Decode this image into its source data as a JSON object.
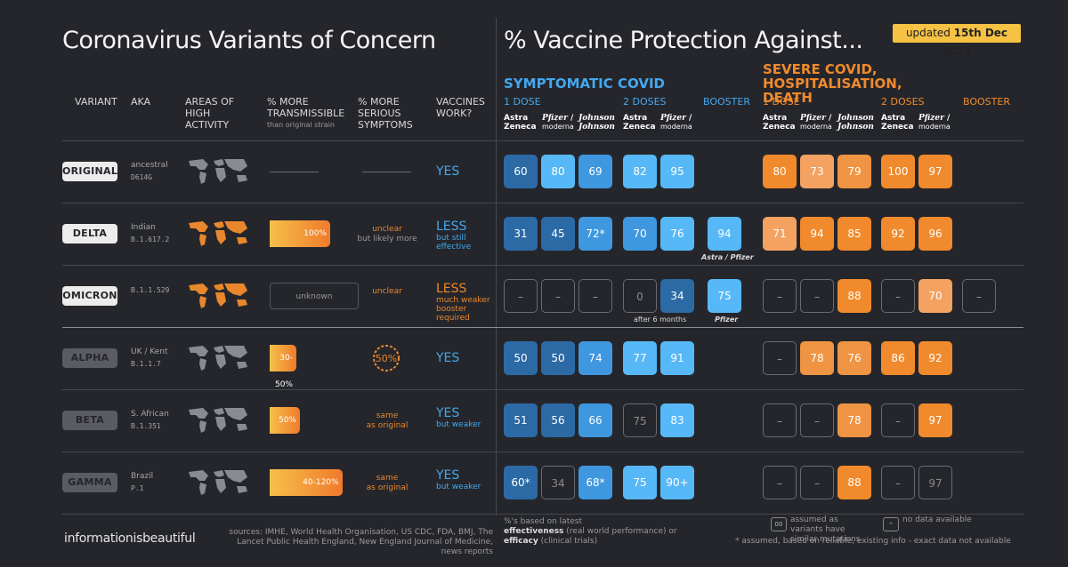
{
  "title": "Coronavirus Variants of Concern",
  "title2": "% Vaccine Protection Against...",
  "updated": {
    "label": "updated",
    "date": "15th Dec 2021"
  },
  "columns": {
    "variant": "VARIANT",
    "aka": "AKA",
    "areas": "AREAS OF HIGH ACTIVITY",
    "transmissible": "% MORE TRANSMISSIBLE",
    "transmissible_sub": "than original strain",
    "serious": "% MORE SERIOUS SYMPTOMS",
    "vaccines": "VACCINES WORK?"
  },
  "sections": {
    "symptomatic": "SYMPTOMATIC COVID",
    "severe": "SEVERE COVID, HOSPITALISATION, DEATH"
  },
  "doses": {
    "one": "1 DOSE",
    "two": "2 DOSES",
    "booster": "BOOSTER"
  },
  "brands": {
    "astra1": "Astra",
    "astra2": "Zeneca",
    "pfizer": "Pfizer",
    "moderna": "moderna",
    "jj1": "Johnson",
    "jj2": "Johnson"
  },
  "colors": {
    "blue_bright": "#57b8f7",
    "blue_mid": "#3f97df",
    "blue_dark": "#2c6aa6",
    "orange_bright": "#f08a2c",
    "orange_light": "#f4a261"
  },
  "chart_data": {
    "type": "table",
    "variants": [
      {
        "name": "ORIGINAL",
        "aka": "ancestral",
        "code": "D614G",
        "transmissible": null,
        "transmissible_label": "",
        "serious": "",
        "serious_sub": "",
        "vaccines": "YES",
        "vaccines_sub": "",
        "note": "",
        "symptomatic": {
          "one": [
            "60",
            "80",
            "69"
          ],
          "two": [
            "82",
            "95"
          ],
          "booster": []
        },
        "severe": {
          "one": [
            "80",
            "73",
            "79"
          ],
          "two": [
            "100",
            "97"
          ],
          "booster": []
        }
      },
      {
        "name": "DELTA",
        "aka": "Indian",
        "code": "B.1.617.2",
        "transmissible": 100,
        "transmissible_label": "100%",
        "serious": "unclear",
        "serious_sub": "but likely more",
        "vaccines": "LESS",
        "vaccines_sub": "but still effective",
        "note": "",
        "symptomatic": {
          "one": [
            "31",
            "45",
            "72*"
          ],
          "two": [
            "70",
            "76"
          ],
          "booster": [
            "94"
          ],
          "booster_note": "Astra / Pfizer"
        },
        "severe": {
          "one": [
            "71",
            "94",
            "85"
          ],
          "two": [
            "92",
            "96"
          ],
          "booster": []
        }
      },
      {
        "name": "OMICRON",
        "aka": "",
        "code": "B.1.1.529",
        "transmissible": null,
        "transmissible_label": "unknown",
        "serious": "unclear",
        "serious_sub": "",
        "vaccines": "LESS",
        "vaccines_sub": "much weaker booster required",
        "note": "after 6 months",
        "symptomatic": {
          "one": [
            "–",
            "–",
            "–"
          ],
          "two": [
            "0",
            "34"
          ],
          "booster": [
            "75"
          ],
          "booster_note": "Pfizer"
        },
        "severe": {
          "one": [
            "–",
            "–",
            "88"
          ],
          "two": [
            "–",
            "70"
          ],
          "booster": [
            "–"
          ]
        }
      },
      {
        "name": "ALPHA",
        "aka": "UK / Kent",
        "code": "B.1.1.7",
        "transmissible": 40,
        "transmissible_label": "30-50%",
        "serious": "50%",
        "serious_sub": "",
        "vaccines": "YES",
        "vaccines_sub": "",
        "note": "",
        "symptomatic": {
          "one": [
            "50",
            "50",
            "74"
          ],
          "two": [
            "77",
            "91"
          ],
          "booster": []
        },
        "severe": {
          "one": [
            "–",
            "78",
            "76"
          ],
          "two": [
            "86",
            "92"
          ],
          "booster": []
        }
      },
      {
        "name": "BETA",
        "aka": "S. African",
        "code": "B.1.351",
        "transmissible": 50,
        "transmissible_label": "50%",
        "serious": "same",
        "serious_sub": "as original",
        "vaccines": "YES",
        "vaccines_sub": "but weaker",
        "note": "",
        "symptomatic": {
          "one": [
            "51",
            "56",
            "66"
          ],
          "two": [
            "75",
            "83"
          ],
          "booster": []
        },
        "severe": {
          "one": [
            "–",
            "–",
            "78"
          ],
          "two": [
            "–",
            "97"
          ],
          "booster": []
        }
      },
      {
        "name": "GAMMA",
        "aka": "Brazil",
        "code": "P.1",
        "transmissible": 120,
        "transmissible_label": "40-120%",
        "serious": "same",
        "serious_sub": "as original",
        "vaccines": "YES",
        "vaccines_sub": "but weaker",
        "note": "",
        "symptomatic": {
          "one": [
            "60*",
            "34",
            "68*"
          ],
          "two": [
            "75",
            "90+"
          ],
          "booster": []
        },
        "severe": {
          "one": [
            "–",
            "–",
            "88"
          ],
          "two": [
            "–",
            "97"
          ],
          "booster": []
        }
      }
    ]
  },
  "footer": {
    "logo": "informationisbeautiful",
    "sources": "sources: IMHE, World Health Organisation, US CDC, FDA, BMJ, The Lancet Public Health England, New England Journal of Medicine, news reports",
    "pct_note1": "%'s based on latest",
    "pct_eff": "effectiveness",
    "pct_eff_desc": "(real world performance) or",
    "pct_efc": "efficacy",
    "pct_efc_desc": "(clinical trials)",
    "legend_assumed": "assumed as variants have similar mutations",
    "legend_nodata": "no data available",
    "legend_star": "* assumed, based on reliable, existing info - exact data not available"
  }
}
